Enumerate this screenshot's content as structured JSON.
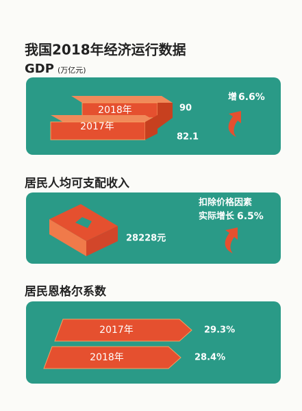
{
  "title": "我国2018年经济运行数据",
  "gdp": {
    "heading": "GDP",
    "unit": "(万亿元)",
    "bars": [
      {
        "label": "2018年",
        "value": "90"
      },
      {
        "label": "2017年",
        "value": "82.1"
      }
    ],
    "growth": {
      "prefix": "增",
      "value": "6.6%"
    }
  },
  "income": {
    "heading": "居民人均可支配收入",
    "value": "28228元",
    "note": {
      "line1": "扣除价格因素",
      "prefix": "实际增长",
      "value": "6.5%"
    }
  },
  "engel": {
    "heading": "居民恩格尔系数",
    "bars": [
      {
        "label": "2017年",
        "value": "29.3%"
      },
      {
        "label": "2018年",
        "value": "28.4%"
      }
    ]
  }
}
